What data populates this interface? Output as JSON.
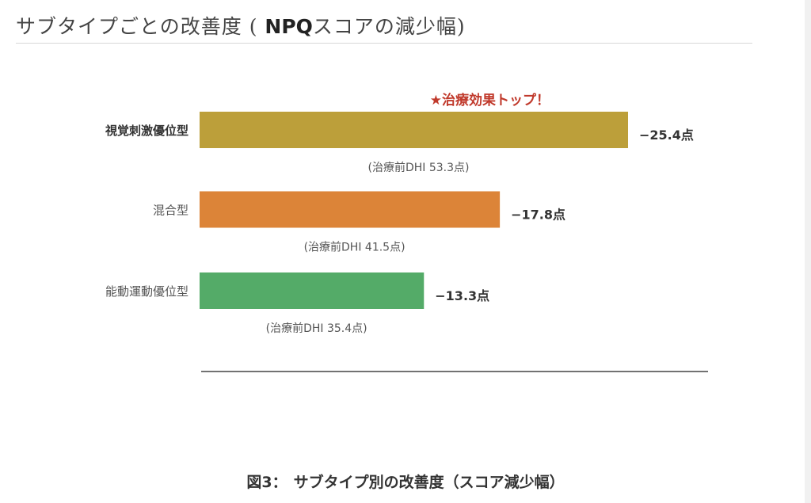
{
  "header": {
    "title_prefix": "サブタイプごとの改善度 ( ",
    "title_bold": "NPQ",
    "title_suffix": "スコアの減少幅)"
  },
  "chart_data": {
    "type": "bar",
    "orientation": "horizontal",
    "categories": [
      "視覚刺激優位型",
      "混合型",
      "能動運動優位型"
    ],
    "values": [
      25.4,
      17.8,
      13.3
    ],
    "value_labels": [
      "−25.4点",
      "−17.8点",
      "−13.3点"
    ],
    "sublabels": [
      "(治療前DHI 53.3点)",
      "(治療前DHI 41.5点)",
      "(治療前DHI 35.4点)"
    ],
    "colors": [
      "#bc9f3a",
      "#dc8438",
      "#54ab68"
    ],
    "annotation": "★治療効果トップ！",
    "annotation_color": "#c0392b",
    "highlight_index": 0,
    "title": "",
    "xlabel": "",
    "ylabel": "",
    "grid": false
  },
  "caption": {
    "figure_label": "図3：",
    "text": "サブタイプ別の改善度（スコア減少幅）"
  }
}
